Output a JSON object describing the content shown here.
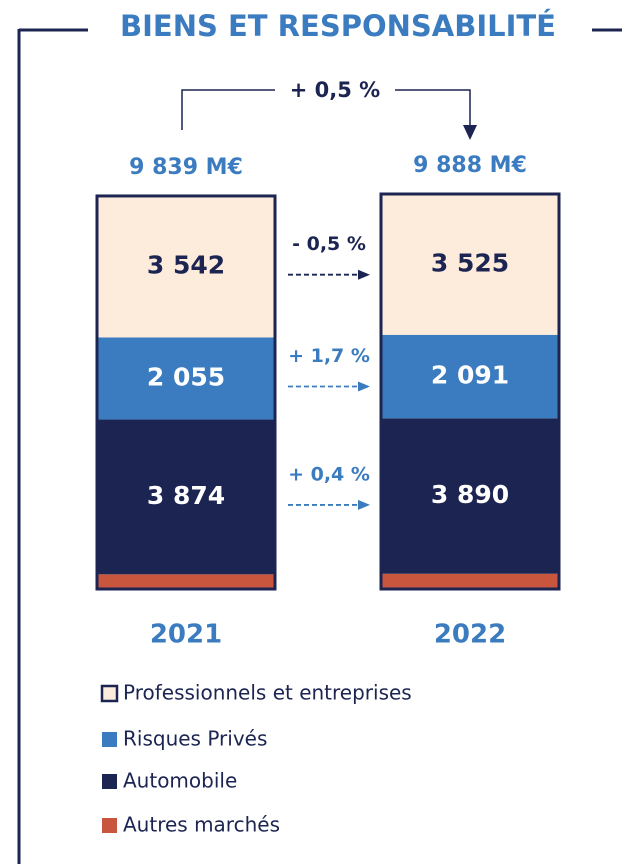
{
  "chart_data": {
    "type": "stacked_bar",
    "title": "BIENS ET RESPONSABILITÉ",
    "categories": [
      "2021",
      "2022"
    ],
    "totals": {
      "values": [
        9839,
        9888
      ],
      "labels": [
        "9 839 M€",
        "9 888 M€"
      ]
    },
    "total_change": "+ 0,5 %",
    "series": [
      {
        "name": "Autres marchés",
        "color": "#c8553d",
        "values": [
          368,
          382
        ]
      },
      {
        "name": "Automobile",
        "color": "#1c2452",
        "values": [
          3874,
          3890
        ],
        "value_labels": [
          "3 874",
          "3 890"
        ],
        "change_label": "+ 0,4 %",
        "label_color": "#ffffff",
        "change_color": "#3b7bbf"
      },
      {
        "name": "Risques Privés",
        "color": "#3b7bbf",
        "values": [
          2055,
          2091
        ],
        "value_labels": [
          "2 055",
          "2 091"
        ],
        "change_label": "+ 1,7 %",
        "label_color": "#ffffff",
        "change_color": "#3b7bbf"
      },
      {
        "name": "Professionnels et entreprises",
        "color": "#fdebdc",
        "values": [
          3542,
          3525
        ],
        "value_labels": [
          "3 542",
          "3 525"
        ],
        "change_label": "- 0,5 %",
        "label_color": "#1c2452",
        "change_color": "#1c2452"
      }
    ]
  }
}
